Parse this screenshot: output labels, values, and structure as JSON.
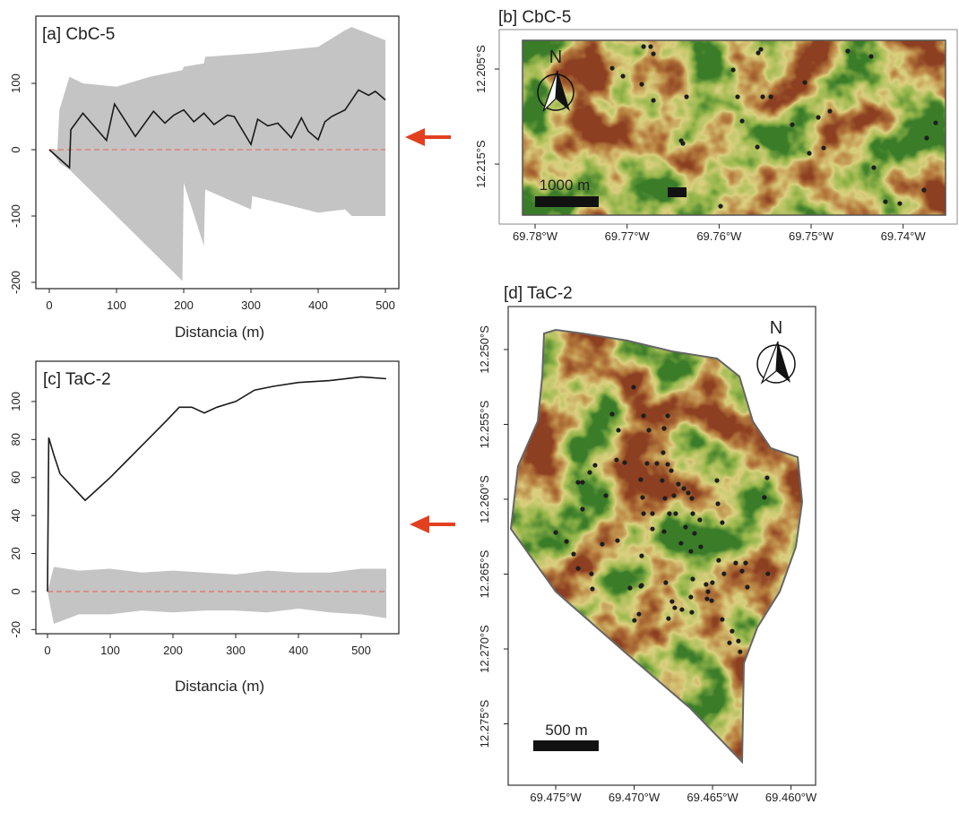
{
  "chart_data": [
    {
      "type": "line",
      "title": "[a] CbC-5",
      "x_label": "Distancia (m)",
      "xlim": [
        -20,
        520
      ],
      "ylim": [
        -209.5,
        201.4
      ],
      "xticks": [
        0,
        100,
        200,
        300,
        400,
        500
      ],
      "yticks": [
        -200,
        -100,
        0,
        100
      ],
      "hline": 0,
      "hline_color": "#e8736c",
      "envelope": {
        "color": "#c4c4c4",
        "x": [
          0,
          12,
          15,
          30,
          50,
          100,
          150,
          198,
          200,
          230,
          232,
          300,
          302,
          400,
          440,
          450,
          500
        ],
        "upper": [
          0,
          0,
          60,
          110,
          100,
          95,
          110,
          120,
          125,
          130,
          140,
          145,
          145,
          155,
          180,
          185,
          165
        ],
        "lower": [
          0,
          -15,
          -20,
          -30,
          -50,
          -100,
          -150,
          -198,
          -50,
          -145,
          -60,
          -90,
          -70,
          -95,
          -90,
          -100,
          -100
        ]
      },
      "line": {
        "color": "#1a1a1a",
        "x": [
          0,
          30,
          32,
          50,
          85,
          97,
          128,
          155,
          172,
          185,
          200,
          215,
          230,
          245,
          265,
          275,
          300,
          310,
          325,
          340,
          360,
          375,
          385,
          400,
          410,
          420,
          440,
          460,
          475,
          485,
          500
        ],
        "values": [
          0,
          -27,
          30,
          55,
          14,
          69,
          20,
          58,
          40,
          52,
          60,
          42,
          55,
          38,
          52,
          50,
          8,
          46,
          36,
          40,
          18,
          48,
          28,
          15,
          42,
          50,
          60,
          90,
          82,
          88,
          75
        ]
      }
    },
    {
      "type": "map",
      "title": "[b] CbC-5",
      "scale_label": "1000 m",
      "north_label": "N",
      "xlim": [
        -69.7839,
        -69.73412
      ],
      "ylim": [
        -12.22131,
        -12.20085
      ],
      "xticks": [
        {
          "value": -69.78,
          "label": "69.78°W"
        },
        {
          "value": -69.77,
          "label": "69.77°W"
        },
        {
          "value": -69.76,
          "label": "69.76°W"
        },
        {
          "value": -69.75,
          "label": "69.75°W"
        },
        {
          "value": -69.74,
          "label": "69.74°W"
        }
      ],
      "yticks": [
        {
          "value": -12.205,
          "label": "12.205°S"
        },
        {
          "value": -12.215,
          "label": "12.215°S"
        }
      ],
      "points": {
        "color": "#1e1e1e",
        "x": [
          -69.76821,
          -69.76744,
          -69.77162,
          -69.77045,
          -69.76714,
          -69.75546,
          -69.75575,
          -69.74601,
          -69.74347,
          -69.75847,
          -69.75068,
          -69.76841,
          -69.76354,
          -69.76714,
          -69.75799,
          -69.75526,
          -69.75438,
          -69.7575,
          -69.75205,
          -69.74922,
          -69.74796,
          -69.73646,
          -69.73744,
          -69.75584,
          -69.76412,
          -69.76393,
          -69.7502,
          -69.74864,
          -69.74318,
          -69.73773,
          -69.74192,
          -69.74036,
          -69.75984
        ],
        "y": [
          -12.20264,
          -12.20264,
          -12.20491,
          -12.20575,
          -12.2034,
          -12.20293,
          -12.2033,
          -12.20311,
          -12.20368,
          -12.20509,
          -12.20641,
          -12.2066,
          -12.20792,
          -12.2083,
          -12.20792,
          -12.20792,
          -12.20792,
          -12.21047,
          -12.21085,
          -12.21009,
          -12.20943,
          -12.21066,
          -12.21226,
          -12.2132,
          -12.21254,
          -12.21283,
          -12.21386,
          -12.2133,
          -12.21537,
          -12.21773,
          -12.21896,
          -12.21915,
          -12.21943
        ]
      }
    },
    {
      "type": "line",
      "title": "[c] TaC-2",
      "x_label": "Distancia (m)",
      "xlim": [
        -18.6,
        560
      ],
      "ylim": [
        -22.2,
        121.2
      ],
      "xticks": [
        0,
        100,
        200,
        300,
        400,
        500
      ],
      "yticks": [
        -20,
        0,
        20,
        40,
        60,
        80,
        100
      ],
      "hline": 0,
      "hline_color": "#e8736c",
      "envelope": {
        "color": "#c4c4c4",
        "x": [
          0,
          10,
          50,
          100,
          150,
          200,
          250,
          300,
          350,
          400,
          450,
          500,
          540
        ],
        "upper": [
          0,
          13,
          11,
          12,
          10,
          11,
          10,
          9,
          11,
          10,
          10,
          12,
          12
        ],
        "lower": [
          0,
          -17,
          -12,
          -12,
          -10,
          -11,
          -10,
          -10,
          -11,
          -9,
          -11,
          -12,
          -14
        ]
      },
      "line": {
        "color": "#1a1a1a",
        "x": [
          0,
          2,
          10,
          20,
          40,
          60,
          80,
          100,
          130,
          160,
          190,
          210,
          230,
          250,
          270,
          300,
          330,
          360,
          400,
          450,
          500,
          540
        ],
        "values": [
          0,
          81,
          72,
          62,
          55,
          48,
          54,
          60,
          70,
          80,
          90,
          97,
          97,
          94,
          97,
          100,
          106,
          108,
          110,
          111,
          113,
          112
        ]
      }
    },
    {
      "type": "map",
      "title": "[d] TaC-2",
      "scale_label": "500 m",
      "north_label": "N",
      "xlim": [
        -69.47803,
        -69.45843
      ],
      "ylim": [
        -12.2791,
        -12.24713
      ],
      "xticks": [
        {
          "value": -69.475,
          "label": "69.475°W"
        },
        {
          "value": -69.47,
          "label": "69.470°W"
        },
        {
          "value": -69.465,
          "label": "69.465°W"
        },
        {
          "value": -69.46,
          "label": "69.460°W"
        }
      ],
      "yticks": [
        {
          "value": -12.25,
          "label": "12.250°S"
        },
        {
          "value": -12.255,
          "label": "12.255°S"
        },
        {
          "value": -12.26,
          "label": "12.260°S"
        },
        {
          "value": -12.265,
          "label": "12.265°S"
        },
        {
          "value": -12.27,
          "label": "12.270°S"
        },
        {
          "value": -12.275,
          "label": "12.275°S"
        }
      ],
      "points": {
        "color": "#1e1e1e",
        "x": [
          -69.47003,
          -69.4714,
          -69.4694,
          -69.46786,
          -69.471,
          -69.46906,
          -69.46809,
          -69.46815,
          -69.47112,
          -69.4706,
          -69.47249,
          -69.47283,
          -69.46918,
          -69.46855,
          -69.46786,
          -69.46763,
          -69.47329,
          -69.47357,
          -69.46958,
          -69.46821,
          -69.46718,
          -69.46683,
          -69.46655,
          -69.46472,
          -69.46152,
          -69.4617,
          -69.4718,
          -69.46946,
          -69.46803,
          -69.46746,
          -69.46632,
          -69.47329,
          -69.4694,
          -69.46883,
          -69.46775,
          -69.46735,
          -69.46626,
          -69.46466,
          -69.46581,
          -69.46672,
          -69.46615,
          -69.46438,
          -69.475,
          -69.47431,
          -69.46883,
          -69.46809,
          -69.47386,
          -69.46701,
          -69.47203,
          -69.47106,
          -69.46575,
          -69.46952,
          -69.46638,
          -69.46461,
          -69.46352,
          -69.46289,
          -69.46427,
          -69.46147,
          -69.47357,
          -69.47272,
          -69.46958,
          -69.47026,
          -69.46952,
          -69.46798,
          -69.46626,
          -69.46541,
          -69.46501,
          -69.46312,
          -69.46278,
          -69.46695,
          -69.46632,
          -69.46781,
          -69.46529,
          -69.47266,
          -69.46998,
          -69.46969,
          -69.46535,
          -69.46506,
          -69.46438,
          -69.46375,
          -69.46335,
          -69.46392,
          -69.46324,
          -69.46638,
          -69.46758,
          -69.46741
        ],
        "y": [
          -12.25252,
          -12.25431,
          -12.25443,
          -12.25443,
          -12.25539,
          -12.25539,
          -12.25527,
          -12.25689,
          -12.25737,
          -12.25755,
          -12.25773,
          -12.25821,
          -12.25761,
          -12.25761,
          -12.25767,
          -12.25809,
          -12.25887,
          -12.25887,
          -12.25869,
          -12.25875,
          -12.25899,
          -12.25928,
          -12.25958,
          -12.25875,
          -12.25857,
          -12.25988,
          -12.25976,
          -12.25988,
          -12.25994,
          -12.25976,
          -12.25994,
          -12.26066,
          -12.26096,
          -12.26096,
          -12.26096,
          -12.26096,
          -12.26096,
          -12.2603,
          -12.26138,
          -12.26186,
          -12.26228,
          -12.26156,
          -12.26222,
          -12.26282,
          -12.26198,
          -12.26216,
          -12.26366,
          -12.26294,
          -12.263,
          -12.26276,
          -12.26318,
          -12.26378,
          -12.26348,
          -12.26408,
          -12.26426,
          -12.26426,
          -12.26498,
          -12.26498,
          -12.26462,
          -12.26498,
          -12.26581,
          -12.26593,
          -12.26575,
          -12.26557,
          -12.26533,
          -12.26569,
          -12.26557,
          -12.2648,
          -12.26587,
          -12.26737,
          -12.26755,
          -12.26797,
          -12.26617,
          -12.26599,
          -12.26809,
          -12.26767,
          -12.26665,
          -12.26677,
          -12.26803,
          -12.26881,
          -12.26947,
          -12.26959,
          -12.27019,
          -12.26653,
          -12.26683,
          -12.26725
        ]
      }
    }
  ]
}
